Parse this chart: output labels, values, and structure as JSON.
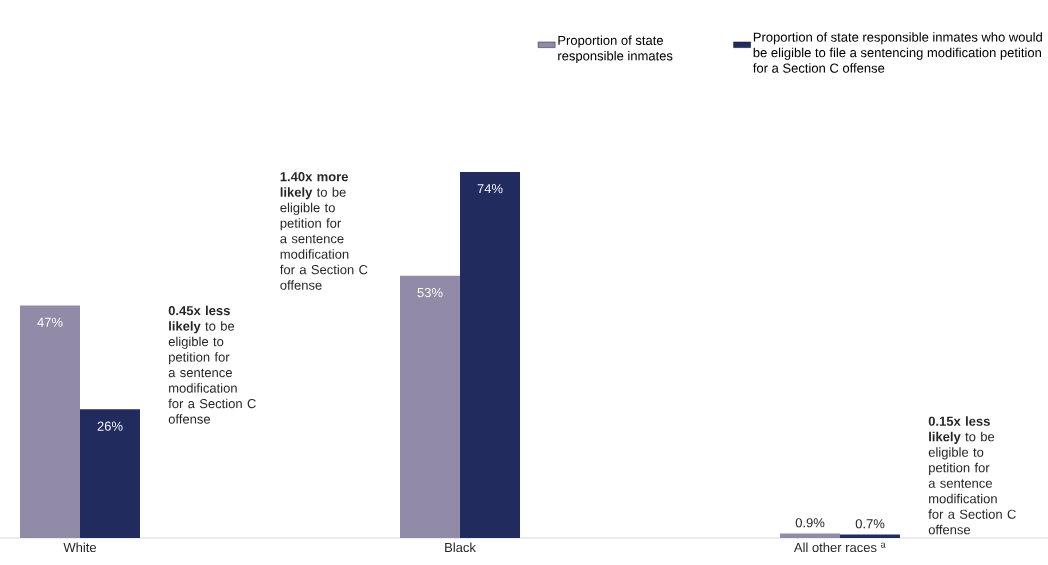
{
  "chart_data": {
    "type": "bar",
    "categories": [
      "White",
      "Black",
      "All other races $^{a}$"
    ],
    "series": [
      {
        "name": "Proportion of state responsible inmates",
        "color": "#918ba8",
        "values": [
          47,
          53,
          0.9
        ],
        "value_labels": [
          "47%",
          "53%",
          "0.9%"
        ]
      },
      {
        "name": "Proportion of state responsible inmates who would be eligible to file a sentencing modification petition for a Section C offense",
        "color": "#222b5e",
        "values": [
          26,
          74,
          0.7
        ],
        "value_labels": [
          "26%",
          "74%",
          "0.7%"
        ]
      }
    ],
    "annotations": [
      "**0.45x less likely** to be eligible to petition for a sentence modification for a Section C offense",
      "**1.40x more likely** to be eligible to petition for a sentence modification for a Section C offense",
      "**0.15x less likely** to be eligible to petition for a sentence modification for a Section C offense"
    ],
    "legend": "top right"
  }
}
